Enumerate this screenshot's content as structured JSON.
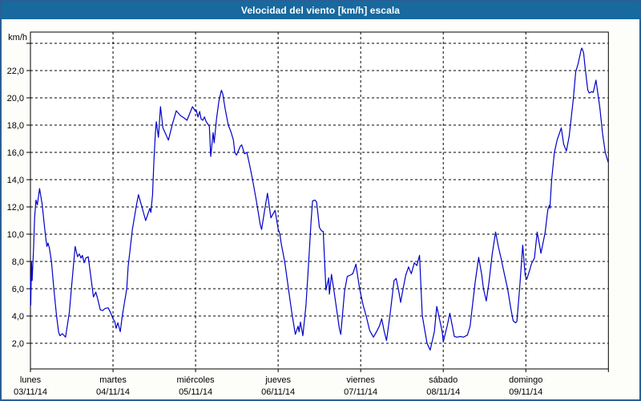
{
  "window": {
    "title": "Velocidad del viento [km/h] escala"
  },
  "colors": {
    "titlebar_bg": "#17699E",
    "titlebar_text": "#FFFFFF",
    "frame_border": "#2A5F96",
    "content_bg": "#FDFEFA",
    "plot_bg": "#FFFFFF",
    "axis": "#000000",
    "grid": "#000000",
    "line": "#0000C8",
    "label_text": "#000000"
  },
  "chart_data": {
    "type": "line",
    "title": "Velocidad del viento [km/h] escala",
    "y_unit_label": "km/h",
    "xlabel": "",
    "ylabel": "km/h",
    "ylim": [
      0.1,
      24.8
    ],
    "x_hours_range": [
      0,
      168
    ],
    "grid": "dashed",
    "legend_position": "none",
    "y_gridline_values": [
      2,
      4,
      6,
      8,
      10,
      12,
      14,
      16,
      18,
      20,
      22,
      24
    ],
    "y_ticks": [
      {
        "value": 22,
        "label": "22,0"
      },
      {
        "value": 20,
        "label": "20,0"
      },
      {
        "value": 18,
        "label": "18,0"
      },
      {
        "value": 16,
        "label": "16,0"
      },
      {
        "value": 14,
        "label": "14,0"
      },
      {
        "value": 12,
        "label": "12,0"
      },
      {
        "value": 10,
        "label": "10,0"
      },
      {
        "value": 8,
        "label": "8,0"
      },
      {
        "value": 6,
        "label": "6,0"
      },
      {
        "value": 4,
        "label": "4,0"
      },
      {
        "value": 2,
        "label": "2,0"
      }
    ],
    "x_days": [
      {
        "name": "lunes",
        "date": "03/11/14"
      },
      {
        "name": "martes",
        "date": "04/11/14"
      },
      {
        "name": "miércoles",
        "date": "05/11/14"
      },
      {
        "name": "jueves",
        "date": "06/11/14"
      },
      {
        "name": "viernes",
        "date": "07/11/14"
      },
      {
        "name": "sábado",
        "date": "08/11/14"
      },
      {
        "name": "domingo",
        "date": "09/11/14"
      }
    ],
    "series": [
      {
        "name": "Velocidad del viento",
        "color": "#0000C8",
        "points_hours_kmh": [
          [
            0,
            6.8
          ],
          [
            0.1,
            4.8
          ],
          [
            0.3,
            8.0
          ],
          [
            0.5,
            6.6
          ],
          [
            0.9,
            9.0
          ],
          [
            1.2,
            11.2
          ],
          [
            1.6,
            12.5
          ],
          [
            2.0,
            12.15
          ],
          [
            2.65,
            13.35
          ],
          [
            3.4,
            12.2
          ],
          [
            4.2,
            10.3
          ],
          [
            4.6,
            9.45
          ],
          [
            4.8,
            9.1
          ],
          [
            5.1,
            9.35
          ],
          [
            5.5,
            9.0
          ],
          [
            6.1,
            8.0
          ],
          [
            6.8,
            6.0
          ],
          [
            7.6,
            4.0
          ],
          [
            8.2,
            2.8
          ],
          [
            8.6,
            2.55
          ],
          [
            9.3,
            2.7
          ],
          [
            10.2,
            2.45
          ],
          [
            11.3,
            4.25
          ],
          [
            12.1,
            6.6
          ],
          [
            13.0,
            9.1
          ],
          [
            13.7,
            8.35
          ],
          [
            14.2,
            8.55
          ],
          [
            14.7,
            8.25
          ],
          [
            15.1,
            8.45
          ],
          [
            15.6,
            7.9
          ],
          [
            16.1,
            8.25
          ],
          [
            16.8,
            8.35
          ],
          [
            17.5,
            7.0
          ],
          [
            18.3,
            5.4
          ],
          [
            19.0,
            5.75
          ],
          [
            19.5,
            5.3
          ],
          [
            20.3,
            4.45
          ],
          [
            21.0,
            4.4
          ],
          [
            21.7,
            4.55
          ],
          [
            22.6,
            4.6
          ],
          [
            23.3,
            4.25
          ],
          [
            24.0,
            3.8
          ],
          [
            24.5,
            3.6
          ],
          [
            24.9,
            3.1
          ],
          [
            25.4,
            3.5
          ],
          [
            26.1,
            2.85
          ],
          [
            26.7,
            4.0
          ],
          [
            28.0,
            6.0
          ],
          [
            28.4,
            7.6
          ],
          [
            29.6,
            10.3
          ],
          [
            30.8,
            12.1
          ],
          [
            31.4,
            12.9
          ],
          [
            32.4,
            12.0
          ],
          [
            33.5,
            11.0
          ],
          [
            34.7,
            11.9
          ],
          [
            35.0,
            11.6
          ],
          [
            35.5,
            12.9
          ],
          [
            35.9,
            15.4
          ],
          [
            36.3,
            17.4
          ],
          [
            36.6,
            18.25
          ],
          [
            37.2,
            17.1
          ],
          [
            37.8,
            19.35
          ],
          [
            38.5,
            17.8
          ],
          [
            40.1,
            16.9
          ],
          [
            41.3,
            18.1
          ],
          [
            42.4,
            19.05
          ],
          [
            43.6,
            18.7
          ],
          [
            44.8,
            18.5
          ],
          [
            45.5,
            18.35
          ],
          [
            47.1,
            19.35
          ],
          [
            48.0,
            19.0
          ],
          [
            48.2,
            19.1
          ],
          [
            48.7,
            18.6
          ],
          [
            49.2,
            19.0
          ],
          [
            49.6,
            18.45
          ],
          [
            50.1,
            18.35
          ],
          [
            50.6,
            18.6
          ],
          [
            51.0,
            18.3
          ],
          [
            52.0,
            17.9
          ],
          [
            52.4,
            15.7
          ],
          [
            53.1,
            17.45
          ],
          [
            53.4,
            16.7
          ],
          [
            54.1,
            18.5
          ],
          [
            54.8,
            19.8
          ],
          [
            55.5,
            20.55
          ],
          [
            55.9,
            20.3
          ],
          [
            56.6,
            19.2
          ],
          [
            57.5,
            18.0
          ],
          [
            58.3,
            17.5
          ],
          [
            59.0,
            16.9
          ],
          [
            59.4,
            16.0
          ],
          [
            59.9,
            15.8
          ],
          [
            61.0,
            16.45
          ],
          [
            61.4,
            16.55
          ],
          [
            62.2,
            15.9
          ],
          [
            62.9,
            16.0
          ],
          [
            63.6,
            15.2
          ],
          [
            64.5,
            14.1
          ],
          [
            65.7,
            12.4
          ],
          [
            66.8,
            10.7
          ],
          [
            67.2,
            10.35
          ],
          [
            68.1,
            11.8
          ],
          [
            68.9,
            13.0
          ],
          [
            69.9,
            11.2
          ],
          [
            71.1,
            11.75
          ],
          [
            72.0,
            10.4
          ],
          [
            72.5,
            10.0
          ],
          [
            72.9,
            9.3
          ],
          [
            73.9,
            8.0
          ],
          [
            75.0,
            6.0
          ],
          [
            76.0,
            4.2
          ],
          [
            77.0,
            2.65
          ],
          [
            77.8,
            3.25
          ],
          [
            78.1,
            2.85
          ],
          [
            78.5,
            3.55
          ],
          [
            79.2,
            2.55
          ],
          [
            80.1,
            4.8
          ],
          [
            80.9,
            8.0
          ],
          [
            81.6,
            11.0
          ],
          [
            82.0,
            12.45
          ],
          [
            82.7,
            12.5
          ],
          [
            83.2,
            12.35
          ],
          [
            84.0,
            10.5
          ],
          [
            84.6,
            10.25
          ],
          [
            85.1,
            10.2
          ],
          [
            85.9,
            5.9
          ],
          [
            86.7,
            6.8
          ],
          [
            86.9,
            5.6
          ],
          [
            87.5,
            7.05
          ],
          [
            88.2,
            5.9
          ],
          [
            89.0,
            4.5
          ],
          [
            89.8,
            3.05
          ],
          [
            90.2,
            2.65
          ],
          [
            91.3,
            5.8
          ],
          [
            92.1,
            6.9
          ],
          [
            93.0,
            7.0
          ],
          [
            93.7,
            7.1
          ],
          [
            94.6,
            7.8
          ],
          [
            95.5,
            6.3
          ],
          [
            96.0,
            5.6
          ],
          [
            96.7,
            4.8
          ],
          [
            97.6,
            4.0
          ],
          [
            98.6,
            2.95
          ],
          [
            99.7,
            2.45
          ],
          [
            100.7,
            2.9
          ],
          [
            101.4,
            3.25
          ],
          [
            102.1,
            3.8
          ],
          [
            102.8,
            2.9
          ],
          [
            103.5,
            2.2
          ],
          [
            104.5,
            4.05
          ],
          [
            105.1,
            5.3
          ],
          [
            105.7,
            6.6
          ],
          [
            106.3,
            6.75
          ],
          [
            107.0,
            5.9
          ],
          [
            107.6,
            5.0
          ],
          [
            108.4,
            6.1
          ],
          [
            109.1,
            7.0
          ],
          [
            109.9,
            7.6
          ],
          [
            110.7,
            7.1
          ],
          [
            111.6,
            7.9
          ],
          [
            112.3,
            7.7
          ],
          [
            113.1,
            8.45
          ],
          [
            113.9,
            4.05
          ],
          [
            114.6,
            3.0
          ],
          [
            115.3,
            2.0
          ],
          [
            116.2,
            1.5
          ],
          [
            117.4,
            2.85
          ],
          [
            118.1,
            4.7
          ],
          [
            118.8,
            3.9
          ],
          [
            119.7,
            2.85
          ],
          [
            120.0,
            2.1
          ],
          [
            121.2,
            3.35
          ],
          [
            121.9,
            4.2
          ],
          [
            122.6,
            3.3
          ],
          [
            123.2,
            2.5
          ],
          [
            124.0,
            2.45
          ],
          [
            124.9,
            2.5
          ],
          [
            125.9,
            2.45
          ],
          [
            127.0,
            2.6
          ],
          [
            127.8,
            3.25
          ],
          [
            128.6,
            5.0
          ],
          [
            129.3,
            6.5
          ],
          [
            130.3,
            8.3
          ],
          [
            131.2,
            7.0
          ],
          [
            131.7,
            6.0
          ],
          [
            132.5,
            5.1
          ],
          [
            133.3,
            6.5
          ],
          [
            134.2,
            8.5
          ],
          [
            135.2,
            10.15
          ],
          [
            136.1,
            9.0
          ],
          [
            136.8,
            8.25
          ],
          [
            137.5,
            7.4
          ],
          [
            138.7,
            6.0
          ],
          [
            139.6,
            4.6
          ],
          [
            140.3,
            3.65
          ],
          [
            141.0,
            3.5
          ],
          [
            141.4,
            3.6
          ],
          [
            142.2,
            6.0
          ],
          [
            143.1,
            9.2
          ],
          [
            143.8,
            7.0
          ],
          [
            144.3,
            6.7
          ],
          [
            145.3,
            7.5
          ],
          [
            145.6,
            7.8
          ],
          [
            146.5,
            8.25
          ],
          [
            147.3,
            10.15
          ],
          [
            148.0,
            9.2
          ],
          [
            148.4,
            8.6
          ],
          [
            149.6,
            10.1
          ],
          [
            150.4,
            11.8
          ],
          [
            150.8,
            12.1
          ],
          [
            151.0,
            11.9
          ],
          [
            151.5,
            14.0
          ],
          [
            152.3,
            16.0
          ],
          [
            153.1,
            16.9
          ],
          [
            154.3,
            17.8
          ],
          [
            155.0,
            16.6
          ],
          [
            155.8,
            16.1
          ],
          [
            156.6,
            17.2
          ],
          [
            157.8,
            19.9
          ],
          [
            158.5,
            21.9
          ],
          [
            159.2,
            22.5
          ],
          [
            160.1,
            23.55
          ],
          [
            160.3,
            23.65
          ],
          [
            160.8,
            23.3
          ],
          [
            161.2,
            22.3
          ],
          [
            162.0,
            20.6
          ],
          [
            162.4,
            20.35
          ],
          [
            163.1,
            20.45
          ],
          [
            163.6,
            20.4
          ],
          [
            164.4,
            21.3
          ],
          [
            165.5,
            19.3
          ],
          [
            166.3,
            17.4
          ],
          [
            167.1,
            16.0
          ],
          [
            167.9,
            15.3
          ]
        ]
      }
    ]
  }
}
